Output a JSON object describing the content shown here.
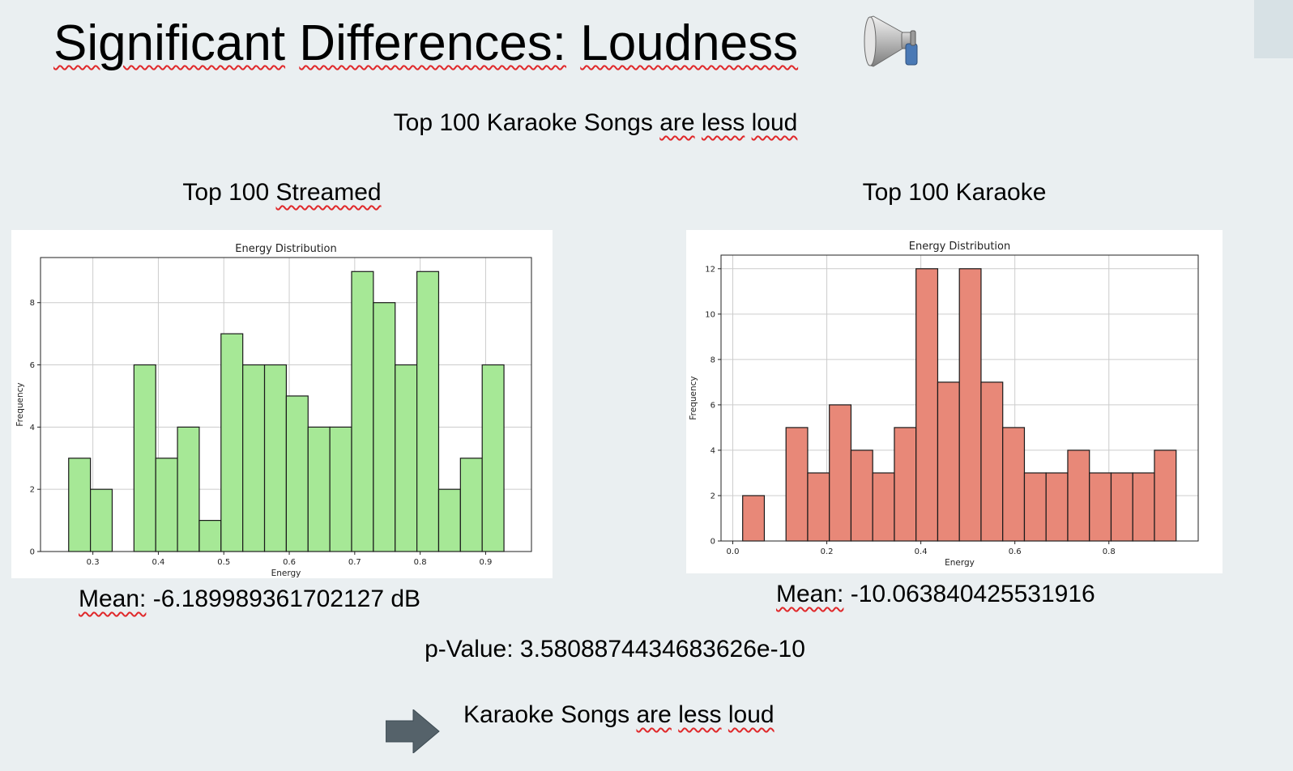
{
  "slide": {
    "title_word1": "Significant",
    "title_word2": "Differences:",
    "title_word3": "Loudness",
    "megaphone_icon": "megaphone-icon",
    "subtitle_prefix": "Top 100 Karaoke Songs",
    "subtitle_w1": "are",
    "subtitle_w2": "less",
    "subtitle_w3": "loud",
    "left_heading_prefix": "Top 100",
    "left_heading_word": "Streamed",
    "right_heading": "Top 100 Karaoke",
    "mean_left_label": "Mean:",
    "mean_left_value": "-6.189989361702127 dB",
    "mean_right_label": "Mean:",
    "mean_right_value": "-10.063840425531916",
    "pvalue": "p-Value: 3.5808874434683626e-10",
    "arrow_icon": "right-arrow-icon",
    "conclusion_prefix": "Karaoke Songs",
    "conclusion_w1": "are",
    "conclusion_w2": "less",
    "conclusion_w3": "loud"
  },
  "chart_data": [
    {
      "type": "bar",
      "title": "Energy Distribution",
      "xlabel": "Energy",
      "ylabel": "Frequency",
      "bins": 20,
      "x_range": [
        0.263,
        0.928
      ],
      "xlim": [
        0.22,
        0.97
      ],
      "ylim": [
        0,
        9.45
      ],
      "xticks": [
        0.3,
        0.4,
        0.5,
        0.6,
        0.7,
        0.8,
        0.9
      ],
      "xtick_labels": [
        "0.3",
        "0.4",
        "0.5",
        "0.6",
        "0.7",
        "0.8",
        "0.9"
      ],
      "yticks": [
        0,
        2,
        4,
        6,
        8
      ],
      "ytick_labels": [
        "0",
        "2",
        "4",
        "6",
        "8"
      ],
      "values": [
        3,
        2,
        0,
        6,
        3,
        4,
        1,
        7,
        6,
        6,
        5,
        4,
        4,
        9,
        8,
        6,
        9,
        2,
        3,
        6
      ],
      "color": "#a6e896",
      "edge_color": "#1a1a1a",
      "grid": true
    },
    {
      "type": "bar",
      "title": "Energy Distribution",
      "xlabel": "Energy",
      "ylabel": "Frequency",
      "bins": 20,
      "x_range": [
        0.021,
        0.943
      ],
      "xlim": [
        -0.025,
        0.99
      ],
      "ylim": [
        0,
        12.6
      ],
      "xticks": [
        0.0,
        0.2,
        0.4,
        0.6,
        0.8
      ],
      "xtick_labels": [
        "0.0",
        "0.2",
        "0.4",
        "0.6",
        "0.8"
      ],
      "yticks": [
        0,
        2,
        4,
        6,
        8,
        10,
        12
      ],
      "ytick_labels": [
        "0",
        "2",
        "4",
        "6",
        "8",
        "10",
        "12"
      ],
      "values": [
        2,
        0,
        5,
        3,
        6,
        4,
        3,
        5,
        12,
        7,
        12,
        7,
        5,
        3,
        3,
        4,
        3,
        3,
        3,
        4
      ],
      "color": "#e88878",
      "edge_color": "#1a1a1a",
      "grid": true
    }
  ]
}
